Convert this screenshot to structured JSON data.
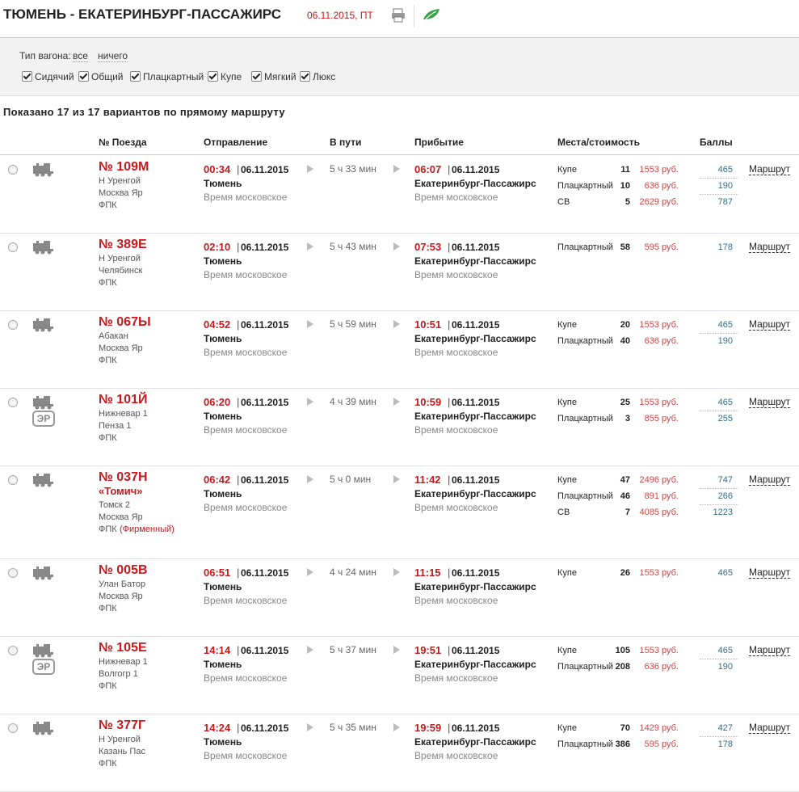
{
  "header": {
    "title": "ТЮМЕНЬ - ЕКАТЕРИНБУРГ-ПАССАЖИРС",
    "date": "06.11.2015, ПТ"
  },
  "filter": {
    "label": "Тип вагона:",
    "all": "все",
    "none": "ничего",
    "types": [
      "Сидячий",
      "Общий",
      "Плацкартный",
      "Купе",
      "Мягкий",
      "Люкс"
    ]
  },
  "summary": "Показано 17 из 17 вариантов по прямому маршруту",
  "table": {
    "headers": [
      "№ Поезда",
      "Отправление",
      "В пути",
      "Прибытие",
      "Места/стоимость",
      "Баллы"
    ],
    "rows": [
      {
        "number": "№ 109М",
        "route": [
          "Н Уренгой",
          "Москва Яр"
        ],
        "carrier": "ФПК",
        "dep_time": "00:34",
        "dep_date": "06.11.2015",
        "dep_station": "Тюмень",
        "dep_note": "Время московское",
        "duration": "5 ч 33 мин",
        "arr_time": "06:07",
        "arr_date": "06.11.2015",
        "arr_station": "Екатеринбург-Пассажирс",
        "arr_note": "Время московское",
        "seats": [
          {
            "class": "Купе",
            "count": 11,
            "price": "1553 руб.",
            "points": 465
          },
          {
            "class": "Плацкартный",
            "count": 10,
            "price": "636 руб.",
            "points": 190
          },
          {
            "class": "СВ",
            "count": 5,
            "price": "2629 руб.",
            "points": 787
          }
        ],
        "link": "Маршрут"
      },
      {
        "number": "№ 389Е",
        "route": [
          "Н Уренгой",
          "Челябинск"
        ],
        "carrier": "ФПК",
        "dep_time": "02:10",
        "dep_date": "06.11.2015",
        "dep_station": "Тюмень",
        "dep_note": "Время московское",
        "duration": "5 ч 43 мин",
        "arr_time": "07:53",
        "arr_date": "06.11.2015",
        "arr_station": "Екатеринбург-Пассажирс",
        "arr_note": "Время московское",
        "seats": [
          {
            "class": "Плацкартный",
            "count": 58,
            "price": "595 руб.",
            "points": 178
          }
        ],
        "link": "Маршрут"
      },
      {
        "number": "№ 067Ы",
        "route": [
          "Абакан",
          "Москва Яр"
        ],
        "carrier": "ФПК",
        "dep_time": "04:52",
        "dep_date": "06.11.2015",
        "dep_station": "Тюмень",
        "dep_note": "Время московское",
        "duration": "5 ч 59 мин",
        "arr_time": "10:51",
        "arr_date": "06.11.2015",
        "arr_station": "Екатеринбург-Пассажирс",
        "arr_note": "Время московское",
        "seats": [
          {
            "class": "Купе",
            "count": 20,
            "price": "1553 руб.",
            "points": 465
          },
          {
            "class": "Плацкартный",
            "count": 40,
            "price": "636 руб.",
            "points": 190
          }
        ],
        "link": "Маршрут"
      },
      {
        "number": "№ 101Й",
        "badge": "ЭР",
        "route": [
          "Нижневар 1",
          "Пенза 1"
        ],
        "carrier": "ФПК",
        "dep_time": "06:20",
        "dep_date": "06.11.2015",
        "dep_station": "Тюмень",
        "dep_note": "Время московское",
        "duration": "4 ч 39 мин",
        "arr_time": "10:59",
        "arr_date": "06.11.2015",
        "arr_station": "Екатеринбург-Пассажирс",
        "arr_note": "Время московское",
        "seats": [
          {
            "class": "Купе",
            "count": 25,
            "price": "1553 руб.",
            "points": 465
          },
          {
            "class": "Плацкартный",
            "count": 3,
            "price": "855 руб.",
            "points": 255
          }
        ],
        "link": "Маршрут"
      },
      {
        "number": "№ 037Н",
        "name": "«Томич»",
        "route": [
          "Томск 2",
          "Москва Яр"
        ],
        "carrier": "ФПК",
        "carrier_note": "(Фирменный)",
        "dep_time": "06:42",
        "dep_date": "06.11.2015",
        "dep_station": "Тюмень",
        "dep_note": "Время московское",
        "duration": "5 ч 0 мин",
        "arr_time": "11:42",
        "arr_date": "06.11.2015",
        "arr_station": "Екатеринбург-Пассажирс",
        "arr_note": "Время московское",
        "seats": [
          {
            "class": "Купе",
            "count": 47,
            "price": "2496 руб.",
            "points": 747
          },
          {
            "class": "Плацкартный",
            "count": 46,
            "price": "891 руб.",
            "points": 266
          },
          {
            "class": "СВ",
            "count": 7,
            "price": "4085 руб.",
            "points": 1223
          }
        ],
        "link": "Маршрут"
      },
      {
        "number": "№ 005В",
        "route": [
          "Улан Батор",
          "Москва Яр"
        ],
        "carrier": "ФПК",
        "dep_time": "06:51",
        "dep_date": "06.11.2015",
        "dep_station": "Тюмень",
        "dep_note": "Время московское",
        "duration": "4 ч 24 мин",
        "arr_time": "11:15",
        "arr_date": "06.11.2015",
        "arr_station": "Екатеринбург-Пассажирс",
        "arr_note": "Время московское",
        "seats": [
          {
            "class": "Купе",
            "count": 26,
            "price": "1553 руб.",
            "points": 465
          }
        ],
        "link": "Маршрут"
      },
      {
        "number": "№ 105Е",
        "badge": "ЭР",
        "route": [
          "Нижневар 1",
          "Волгогр 1"
        ],
        "carrier": "ФПК",
        "dep_time": "14:14",
        "dep_date": "06.11.2015",
        "dep_station": "Тюмень",
        "dep_note": "Время московское",
        "duration": "5 ч 37 мин",
        "arr_time": "19:51",
        "arr_date": "06.11.2015",
        "arr_station": "Екатеринбург-Пассажирс",
        "arr_note": "Время московское",
        "seats": [
          {
            "class": "Купе",
            "count": 105,
            "price": "1553 руб.",
            "points": 465
          },
          {
            "class": "Плацкартный",
            "count": 208,
            "price": "636 руб.",
            "points": 190
          }
        ],
        "link": "Маршрут"
      },
      {
        "number": "№ 377Г",
        "route": [
          "Н Уренгой",
          "Казань Пас"
        ],
        "carrier": "ФПК",
        "dep_time": "14:24",
        "dep_date": "06.11.2015",
        "dep_station": "Тюмень",
        "dep_note": "Время московское",
        "duration": "5 ч 35 мин",
        "arr_time": "19:59",
        "arr_date": "06.11.2015",
        "arr_station": "Екатеринбург-Пассажирс",
        "arr_note": "Время московское",
        "seats": [
          {
            "class": "Купе",
            "count": 70,
            "price": "1429 руб.",
            "points": 427
          },
          {
            "class": "Плацкартный",
            "count": 386,
            "price": "595 руб.",
            "points": 178
          }
        ],
        "link": "Маршрут"
      }
    ]
  }
}
